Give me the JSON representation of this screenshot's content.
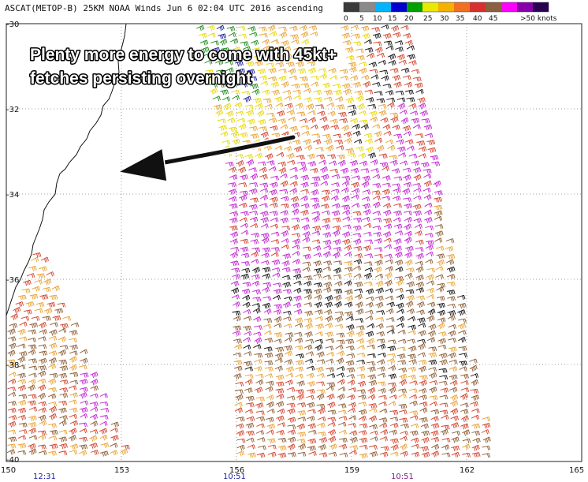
{
  "map": {
    "title": "ASCAT(METOP-B) 25KM NOAA Winds Jun  6 02:04 UTC 2016 ascending",
    "annotation": {
      "line1": "Plenty more energy to come with 45kt+",
      "line2": "fetches persisting overnight"
    },
    "lat_ticks": [
      "-30",
      "-32",
      "-34",
      "-36",
      "-38",
      "-40"
    ],
    "lon_ticks": [
      "150",
      "153",
      "156",
      "159",
      "162",
      "165"
    ],
    "pass_times": [
      {
        "label": "12:31",
        "color": "#1a1a9a"
      },
      {
        "label": "10:51",
        "color": "#1a1a9a"
      },
      {
        "label": "10:51",
        "color": "#7a1a7a"
      }
    ]
  },
  "colorbar": {
    "labels": [
      "0",
      "5",
      "10",
      "15",
      "20",
      "25",
      "30",
      "35",
      "40",
      "45",
      ">50 knots"
    ],
    "colors": [
      "#3a3a3a",
      "#8a8a8a",
      "#00b4ff",
      "#0000d0",
      "#00a000",
      "#e8e800",
      "#f5b000",
      "#f07020",
      "#d83030",
      "#8a6040",
      "#ff00ff",
      "#8800aa",
      "#2a0050"
    ]
  },
  "legend_colors": {
    "calm": "#111111",
    "light": "#1a8a1a",
    "moderate": "#e6d800",
    "fresh": "#e8a030",
    "strong": "#d0402a",
    "gale": "#8a5a30",
    "storm": "#c020d0"
  },
  "icons": {
    "arrow": "left-pointing-arrow",
    "barb": "wind-barb"
  }
}
